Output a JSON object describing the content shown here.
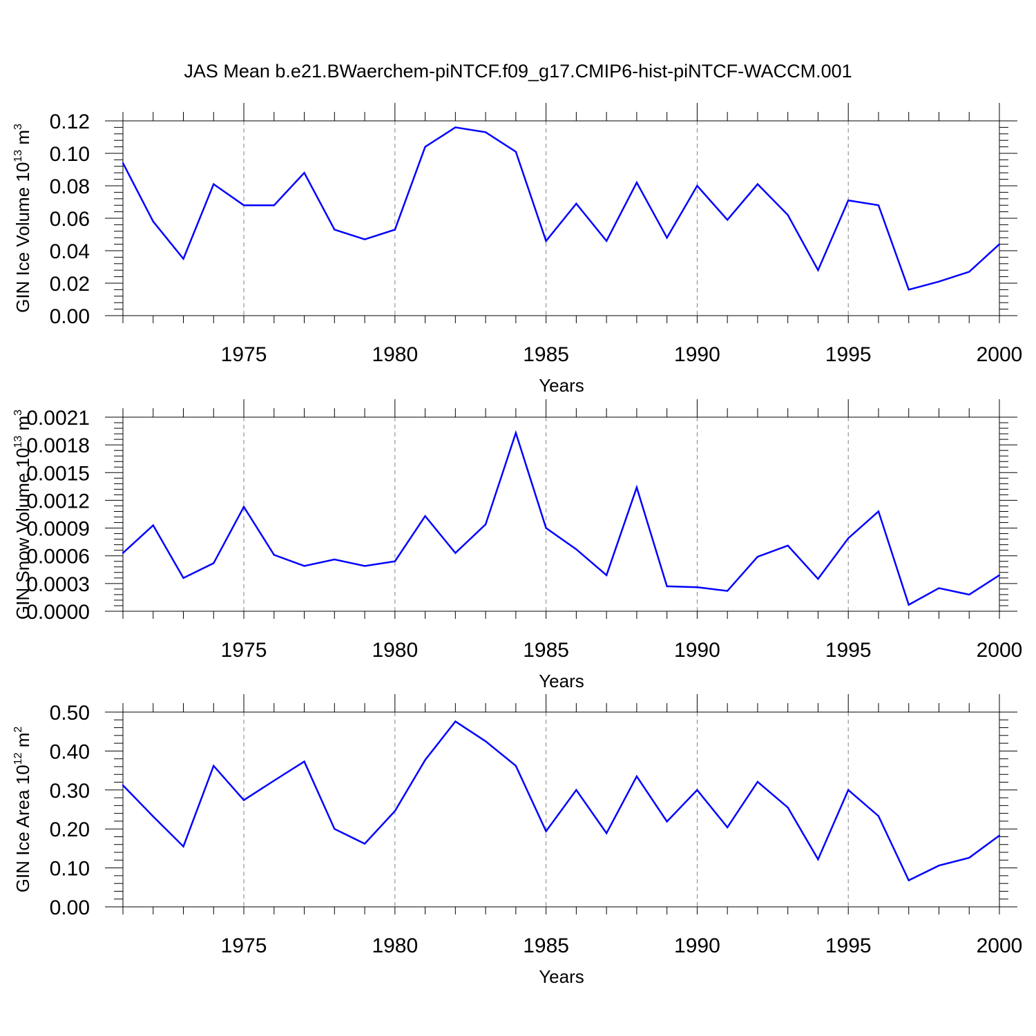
{
  "title": "JAS Mean b.e21.BWaerchem-piNTCF.f09_g17.CMIP6-hist-piNTCF-WACCM.001",
  "colors": {
    "series": "#0000ff",
    "axes": "#000000",
    "grid": "#808080"
  },
  "chart_data": [
    {
      "type": "line",
      "title": "",
      "xlabel": "Years",
      "ylabel": "GIN Ice Volume 10",
      "ylabel_exp": "13",
      "ylabel_unit": " m",
      "ylabel_unit_exp": "3",
      "xlim": [
        1971,
        2000
      ],
      "ylim": [
        0,
        0.12
      ],
      "yticks": [
        "0.00",
        "0.02",
        "0.04",
        "0.06",
        "0.08",
        "0.10",
        "0.12"
      ],
      "xticks": [
        "1975",
        "1980",
        "1985",
        "1990",
        "1995",
        "2000"
      ],
      "grid": "vertical dashed at major x ticks",
      "x": [
        1971,
        1972,
        1973,
        1974,
        1975,
        1976,
        1977,
        1978,
        1979,
        1980,
        1981,
        1982,
        1983,
        1984,
        1985,
        1986,
        1987,
        1988,
        1989,
        1990,
        1991,
        1992,
        1993,
        1994,
        1995,
        1996,
        1997,
        1998,
        1999,
        2000
      ],
      "series": [
        {
          "values": [
            0.094,
            0.058,
            0.035,
            0.081,
            0.068,
            0.068,
            0.088,
            0.053,
            0.047,
            0.053,
            0.104,
            0.116,
            0.113,
            0.101,
            0.046,
            0.069,
            0.046,
            0.082,
            0.048,
            0.08,
            0.059,
            0.081,
            0.062,
            0.028,
            0.071,
            0.068,
            0.016,
            0.021,
            0.027,
            0.044
          ]
        }
      ]
    },
    {
      "type": "line",
      "title": "",
      "xlabel": "Years",
      "ylabel": "GIN Snow Volume 10",
      "ylabel_exp": "13",
      "ylabel_unit": " m",
      "ylabel_unit_exp": "3",
      "xlim": [
        1971,
        2000
      ],
      "ylim": [
        0,
        0.0021
      ],
      "yticks": [
        "0.0000",
        "0.0003",
        "0.0006",
        "0.0009",
        "0.0012",
        "0.0015",
        "0.0018",
        "0.0021"
      ],
      "xticks": [
        "1975",
        "1980",
        "1985",
        "1990",
        "1995",
        "2000"
      ],
      "grid": "vertical dashed at major x ticks",
      "x": [
        1971,
        1972,
        1973,
        1974,
        1975,
        1976,
        1977,
        1978,
        1979,
        1980,
        1981,
        1982,
        1983,
        1984,
        1985,
        1986,
        1987,
        1988,
        1989,
        1990,
        1991,
        1992,
        1993,
        1994,
        1995,
        1996,
        1997,
        1998,
        1999,
        2000
      ],
      "series": [
        {
          "values": [
            0.00063,
            0.00093,
            0.00036,
            0.00052,
            0.00113,
            0.00061,
            0.00049,
            0.00056,
            0.00049,
            0.00054,
            0.00103,
            0.00063,
            0.00094,
            0.00193,
            0.0009,
            0.00067,
            0.00039,
            0.00134,
            0.00027,
            0.00026,
            0.00022,
            0.00059,
            0.00071,
            0.00035,
            0.00079,
            0.00108,
            7e-05,
            0.00025,
            0.00018,
            0.00039
          ]
        }
      ]
    },
    {
      "type": "line",
      "title": "",
      "xlabel": "Years",
      "ylabel": "GIN Ice Area 10",
      "ylabel_exp": "12",
      "ylabel_unit": " m",
      "ylabel_unit_exp": "2",
      "xlim": [
        1971,
        2000
      ],
      "ylim": [
        0,
        0.5
      ],
      "yticks": [
        "0.00",
        "0.10",
        "0.20",
        "0.30",
        "0.40",
        "0.50"
      ],
      "xticks": [
        "1975",
        "1980",
        "1985",
        "1990",
        "1995",
        "2000"
      ],
      "grid": "vertical dashed at major x ticks",
      "x": [
        1971,
        1972,
        1973,
        1974,
        1975,
        1976,
        1977,
        1978,
        1979,
        1980,
        1981,
        1982,
        1983,
        1984,
        1985,
        1986,
        1987,
        1988,
        1989,
        1990,
        1991,
        1992,
        1993,
        1994,
        1995,
        1996,
        1997,
        1998,
        1999,
        2000
      ],
      "series": [
        {
          "values": [
            0.312,
            0.232,
            0.155,
            0.362,
            0.274,
            0.324,
            0.373,
            0.2,
            0.162,
            0.246,
            0.377,
            0.476,
            0.425,
            0.362,
            0.194,
            0.3,
            0.189,
            0.335,
            0.219,
            0.3,
            0.204,
            0.321,
            0.255,
            0.122,
            0.3,
            0.233,
            0.068,
            0.106,
            0.126,
            0.183
          ]
        }
      ]
    }
  ]
}
